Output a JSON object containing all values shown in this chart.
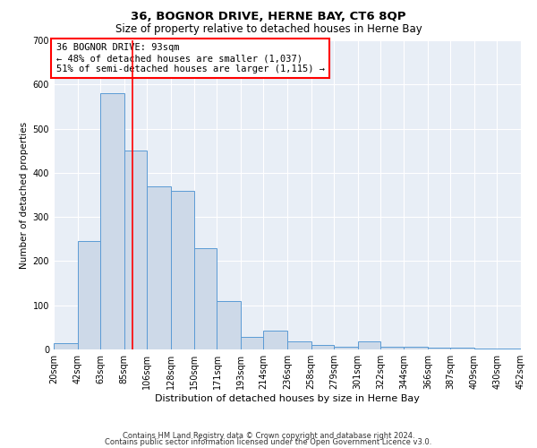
{
  "title": "36, BOGNOR DRIVE, HERNE BAY, CT6 8QP",
  "subtitle": "Size of property relative to detached houses in Herne Bay",
  "xlabel": "Distribution of detached houses by size in Herne Bay",
  "ylabel": "Number of detached properties",
  "footer_line1": "Contains HM Land Registry data © Crown copyright and database right 2024.",
  "footer_line2": "Contains public sector information licensed under the Open Government Licence v3.0.",
  "annotation_line1": "36 BOGNOR DRIVE: 93sqm",
  "annotation_line2": "← 48% of detached houses are smaller (1,037)",
  "annotation_line3": "51% of semi-detached houses are larger (1,115) →",
  "bar_color": "#cdd9e8",
  "bar_edge_color": "#5b9bd5",
  "red_line_x": 93,
  "bins": [
    20,
    42,
    63,
    85,
    106,
    128,
    150,
    171,
    193,
    214,
    236,
    258,
    279,
    301,
    322,
    344,
    366,
    387,
    409,
    430,
    452
  ],
  "counts": [
    15,
    245,
    580,
    450,
    370,
    360,
    230,
    110,
    28,
    42,
    18,
    10,
    6,
    18,
    6,
    6,
    4,
    4,
    2,
    2
  ],
  "ylim": [
    0,
    700
  ],
  "yticks": [
    0,
    100,
    200,
    300,
    400,
    500,
    600,
    700
  ],
  "plot_background": "#e8eef6",
  "title_fontsize": 9.5,
  "subtitle_fontsize": 8.5,
  "annotation_fontsize": 7.5,
  "xlabel_fontsize": 8,
  "ylabel_fontsize": 7.5,
  "tick_fontsize": 7,
  "footer_fontsize": 6
}
